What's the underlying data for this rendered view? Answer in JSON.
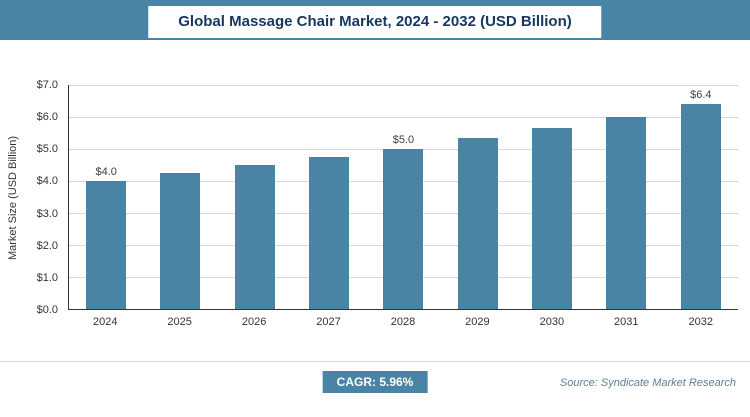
{
  "header": {
    "title": "Global Massage Chair Market, 2024 - 2032 (USD Billion)"
  },
  "footer": {
    "cagr_label": "CAGR: 5.96%",
    "source": "Source: Syndicate Market Research"
  },
  "colors": {
    "accent": "#4a84a4",
    "title_text": "#17375e",
    "source_text": "#5f7d95"
  },
  "chart_data": {
    "type": "bar",
    "title": "Global Massage Chair Market, 2024 - 2032 (USD Billion)",
    "categories": [
      "2024",
      "2025",
      "2026",
      "2027",
      "2028",
      "2029",
      "2030",
      "2031",
      "2032"
    ],
    "values": [
      4.0,
      4.25,
      4.5,
      4.75,
      5.0,
      5.35,
      5.65,
      6.0,
      6.4
    ],
    "bar_labels": [
      "$4.0",
      "",
      "",
      "",
      "$5.0",
      "",
      "",
      "",
      "$6.4"
    ],
    "xlabel": "",
    "ylabel": "Market Size (USD Billion)",
    "ylim": [
      0,
      7
    ],
    "yticks": [
      "$0.0",
      "$1.0",
      "$2.0",
      "$3.0",
      "$4.0",
      "$5.0",
      "$6.0",
      "$7.0"
    ],
    "grid": true,
    "legend": "none",
    "bar_color": "#4a84a4"
  }
}
